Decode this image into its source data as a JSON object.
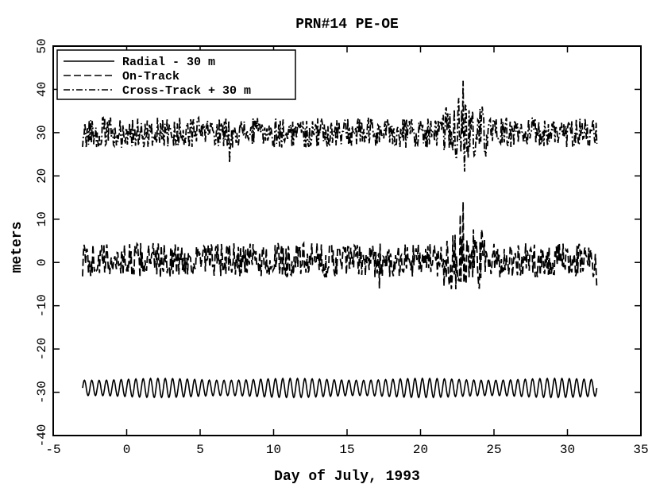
{
  "chart_data": {
    "type": "line",
    "title": "PRN#14 PE-OE",
    "xlabel": "Day of July, 1993",
    "ylabel": "meters",
    "xlim": [
      -5,
      35
    ],
    "ylim": [
      -40,
      50
    ],
    "xticks": [
      -5,
      0,
      5,
      10,
      15,
      20,
      25,
      30,
      35
    ],
    "yticks": [
      -40,
      -30,
      -20,
      -10,
      0,
      10,
      20,
      30,
      40,
      50
    ],
    "grid": false,
    "legend_position": "top-left",
    "series": [
      {
        "name": "Radial - 30 m",
        "style": "solid",
        "x_range": [
          -3.0,
          32.0
        ],
        "baseline": -29.0,
        "amplitude": 2.2,
        "cycles_per_day": 2.0
      },
      {
        "name": "On-Track",
        "style": "dashed",
        "x_range": [
          -3.0,
          32.0
        ],
        "baseline": 0.5,
        "noise_amplitude": 4.0,
        "spikes": [
          {
            "x": 22.7,
            "y": 11.0
          },
          {
            "x": 22.9,
            "y": 14.0
          },
          {
            "x": 23.1,
            "y": -5.0
          },
          {
            "x": 17.2,
            "y": -6.0
          },
          {
            "x": 32.0,
            "y": -6.0
          }
        ]
      },
      {
        "name": "Cross-Track + 30 m",
        "style": "dash-dot",
        "x_range": [
          -3.0,
          32.0
        ],
        "baseline": 30.0,
        "noise_amplitude": 3.5,
        "spikes": [
          {
            "x": 22.9,
            "y": 42.0
          },
          {
            "x": 23.0,
            "y": 21.0
          },
          {
            "x": 7.0,
            "y": 23.0
          },
          {
            "x": 22.6,
            "y": 38.0
          }
        ]
      }
    ]
  }
}
